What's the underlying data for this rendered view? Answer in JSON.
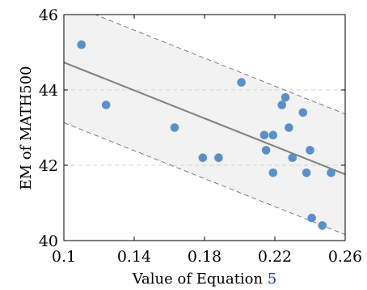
{
  "chart_data": {
    "type": "scatter",
    "xlabel": "Value of Equation",
    "xlabel_ref": "5",
    "ylabel": "EM of MATH500",
    "xlim": [
      0.1,
      0.26
    ],
    "ylim": [
      40,
      46
    ],
    "xticks": [
      0.1,
      0.14,
      0.18,
      0.22,
      0.26
    ],
    "xtick_labels": [
      "0.1",
      "0.14",
      "0.18",
      "0.22",
      "0.26"
    ],
    "yticks": [
      40,
      42,
      44,
      46
    ],
    "ytick_labels": [
      "40",
      "42",
      "44",
      "46"
    ],
    "grid": "dashed horizontal lines at y ticks",
    "points": [
      {
        "x": 0.11,
        "y": 45.2
      },
      {
        "x": 0.124,
        "y": 43.6
      },
      {
        "x": 0.163,
        "y": 43.0
      },
      {
        "x": 0.179,
        "y": 42.2
      },
      {
        "x": 0.188,
        "y": 42.2
      },
      {
        "x": 0.201,
        "y": 44.2
      },
      {
        "x": 0.214,
        "y": 42.8
      },
      {
        "x": 0.215,
        "y": 42.4
      },
      {
        "x": 0.219,
        "y": 41.8
      },
      {
        "x": 0.219,
        "y": 42.8
      },
      {
        "x": 0.224,
        "y": 43.6
      },
      {
        "x": 0.226,
        "y": 43.8
      },
      {
        "x": 0.228,
        "y": 43.0
      },
      {
        "x": 0.23,
        "y": 42.2
      },
      {
        "x": 0.236,
        "y": 43.4
      },
      {
        "x": 0.238,
        "y": 41.8
      },
      {
        "x": 0.24,
        "y": 42.4
      },
      {
        "x": 0.241,
        "y": 40.6
      },
      {
        "x": 0.247,
        "y": 40.4
      },
      {
        "x": 0.252,
        "y": 41.8
      }
    ],
    "trend_line": {
      "x": [
        0.1,
        0.26
      ],
      "y": [
        44.73,
        41.76
      ]
    },
    "band_upper": {
      "x": [
        0.1,
        0.26
      ],
      "y": [
        46.33,
        43.36
      ]
    },
    "band_lower": {
      "x": [
        0.1,
        0.26
      ],
      "y": [
        43.13,
        40.16
      ]
    },
    "colors": {
      "points": "#5b8fc9",
      "trend": "#808080",
      "band_fill": "#f2f2f2",
      "band_edge": "#707070",
      "grid": "#c8c8c8",
      "reference_link": "#1f3fb0"
    }
  }
}
